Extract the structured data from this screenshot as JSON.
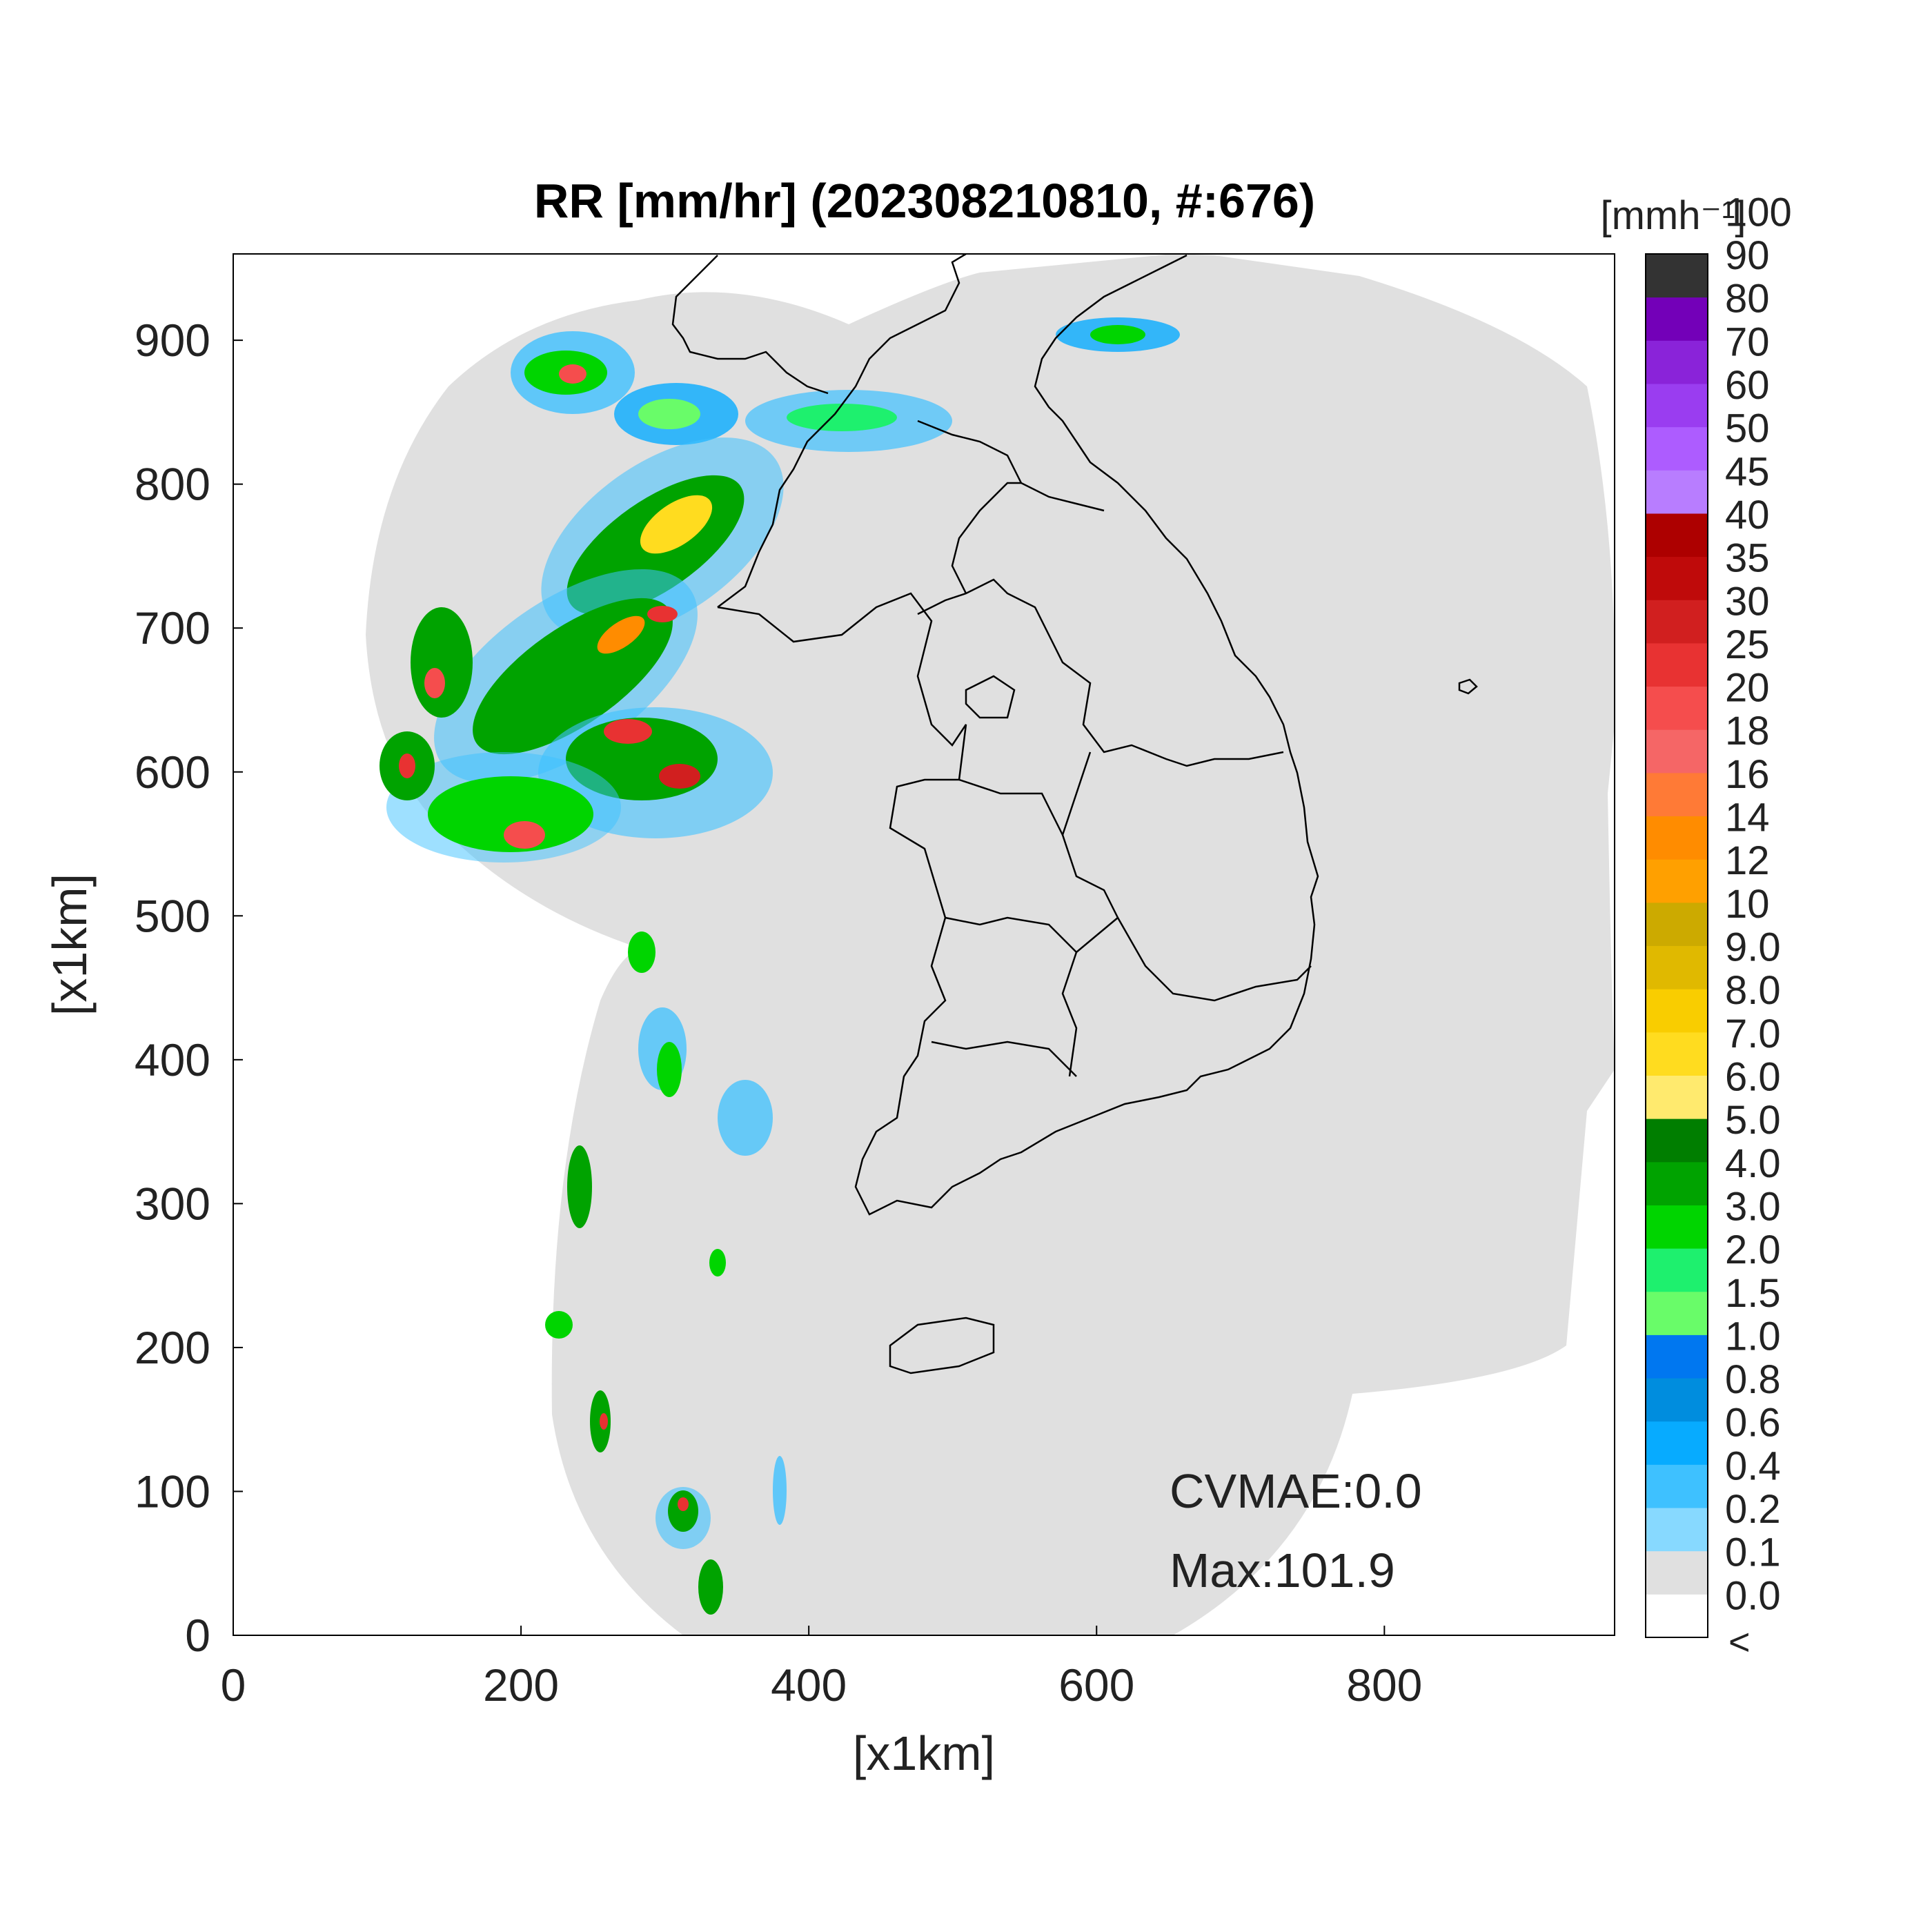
{
  "title": "RR [mm/hr] (202308210810, #:676)",
  "x_axis": {
    "label": "[x1km]",
    "ticks": [
      "0",
      "200",
      "400",
      "600",
      "800"
    ]
  },
  "y_axis": {
    "label": "[x1km]",
    "ticks": [
      "0",
      "100",
      "200",
      "300",
      "400",
      "500",
      "600",
      "700",
      "800",
      "900"
    ]
  },
  "annotations": {
    "cvmae": "CVMAE:0.0",
    "max": "Max:101.9"
  },
  "colorbar": {
    "unit_label": "[mmh⁻¹]",
    "below_label": "<",
    "labels": [
      "0.0",
      "0.1",
      "0.2",
      "0.4",
      "0.6",
      "0.8",
      "1.0",
      "1.5",
      "2.0",
      "3.0",
      "4.0",
      "5.0",
      "6.0",
      "7.0",
      "8.0",
      "9.0",
      "10",
      "12",
      "14",
      "16",
      "18",
      "20",
      "25",
      "30",
      "35",
      "40",
      "45",
      "50",
      "60",
      "70",
      "80",
      "90",
      "100"
    ],
    "colors": [
      "#ffffff",
      "#e0e0e0",
      "#87d9ff",
      "#3ec1ff",
      "#07abff",
      "#008dde",
      "#0077f0",
      "#69fc69",
      "#1ef06e",
      "#00d500",
      "#00a300",
      "#007e00",
      "#ffea6e",
      "#ffdc1f",
      "#f9cd00",
      "#e0b900",
      "#ccaa00",
      "#ffa000",
      "#ff8c00",
      "#ff7a36",
      "#f56666",
      "#f54d4d",
      "#e83232",
      "#d11f1f",
      "#bf0a0a",
      "#ad0000",
      "#b87dff",
      "#ad5cff",
      "#9a3df0",
      "#8a23d9",
      "#7300b8",
      "#333333"
    ]
  },
  "map": {
    "background_color": "#e0e0e0",
    "border_color": "#000000",
    "x_range": [
      0,
      960
    ],
    "y_range": [
      0,
      960
    ]
  }
}
